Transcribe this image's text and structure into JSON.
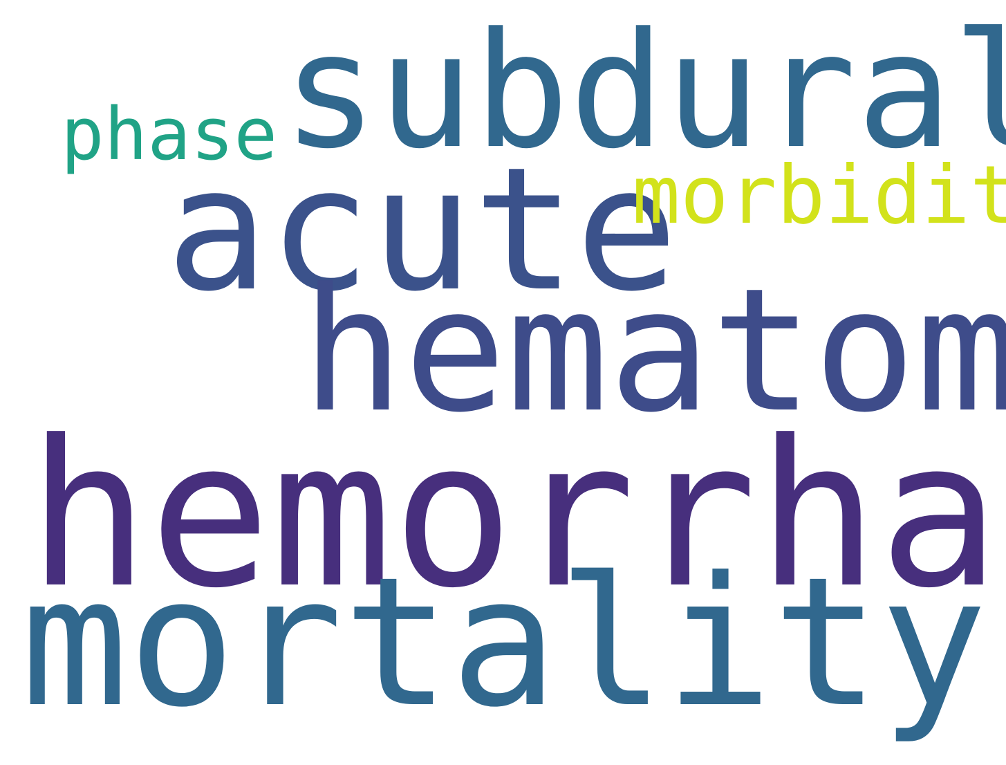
{
  "words": [
    {
      "text": "subdural",
      "color": "#31688e"
    },
    {
      "text": "phase",
      "color": "#20a386"
    },
    {
      "text": "acute",
      "color": "#3b528b"
    },
    {
      "text": "morbidity",
      "color": "#d2e21b"
    },
    {
      "text": "hematoma",
      "color": "#3e4c8a"
    },
    {
      "text": "hemorrhage",
      "color": "#472f7d"
    },
    {
      "text": "mortality",
      "color": "#31688e"
    }
  ]
}
